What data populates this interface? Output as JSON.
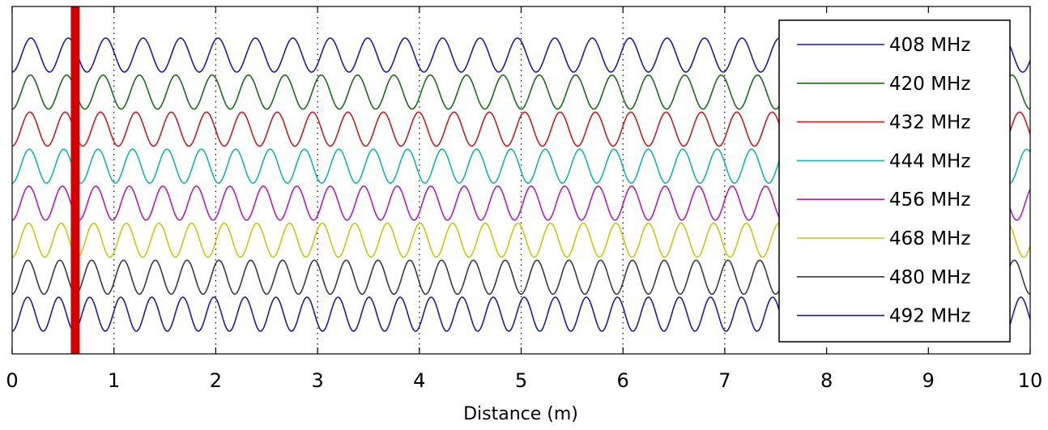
{
  "chart_data": {
    "type": "line",
    "title": "",
    "xlabel": "Distance (m)",
    "ylabel": "",
    "xlim": [
      0,
      10
    ],
    "xticks": [
      0,
      1,
      2,
      3,
      4,
      5,
      6,
      7,
      8,
      9,
      10
    ],
    "yticks_shown": false,
    "grid": "x-dotted",
    "legend_position": "top-right",
    "series": [
      {
        "name": "408 MHz",
        "color": "#1c1ca8",
        "frequency_mhz": 408,
        "cycles_per_m": 2.72
      },
      {
        "name": "420 MHz",
        "color": "#1b6b1b",
        "frequency_mhz": 420,
        "cycles_per_m": 2.8
      },
      {
        "name": "432 MHz",
        "color": "#c81e1e",
        "frequency_mhz": 432,
        "cycles_per_m": 2.88
      },
      {
        "name": "444 MHz",
        "color": "#14b4b4",
        "frequency_mhz": 444,
        "cycles_per_m": 2.96
      },
      {
        "name": "456 MHz",
        "color": "#b41eb4",
        "frequency_mhz": 456,
        "cycles_per_m": 3.04
      },
      {
        "name": "468 MHz",
        "color": "#c8c814",
        "frequency_mhz": 468,
        "cycles_per_m": 3.12
      },
      {
        "name": "480 MHz",
        "color": "#3a3a3a",
        "frequency_mhz": 480,
        "cycles_per_m": 3.2
      },
      {
        "name": "492 MHz",
        "color": "#1c1ca8",
        "frequency_mhz": 492,
        "cycles_per_m": 3.28
      }
    ],
    "vertical_marker": {
      "x": 0.62,
      "color": "#d40000"
    },
    "dotted_lines_x": [
      1,
      2,
      3,
      4,
      5,
      6,
      7
    ]
  }
}
